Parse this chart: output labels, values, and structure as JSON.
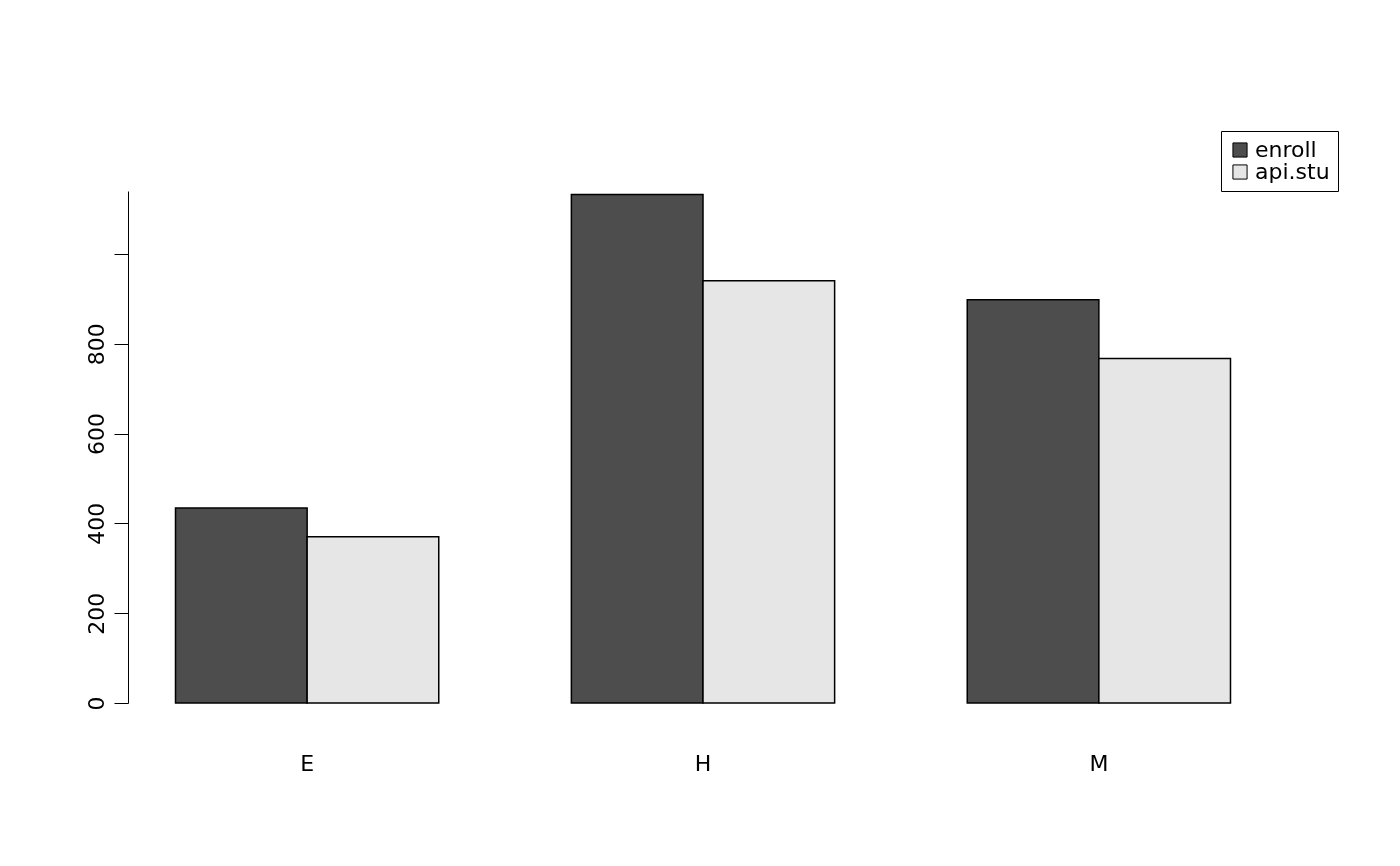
{
  "chart_data": {
    "type": "bar",
    "categories": [
      "E",
      "H",
      "M"
    ],
    "series": [
      {
        "name": "enroll",
        "color": "#4d4d4d",
        "values": [
          434,
          1132,
          898
        ]
      },
      {
        "name": "api.stu",
        "color": "#e6e6e6",
        "values": [
          370,
          940,
          767
        ]
      }
    ],
    "ylim": [
      0,
      1140
    ],
    "yticks": [
      0,
      200,
      400,
      600,
      800,
      {
        "value": 1000,
        "label": null
      }
    ],
    "grid": false,
    "legend": "top right"
  }
}
